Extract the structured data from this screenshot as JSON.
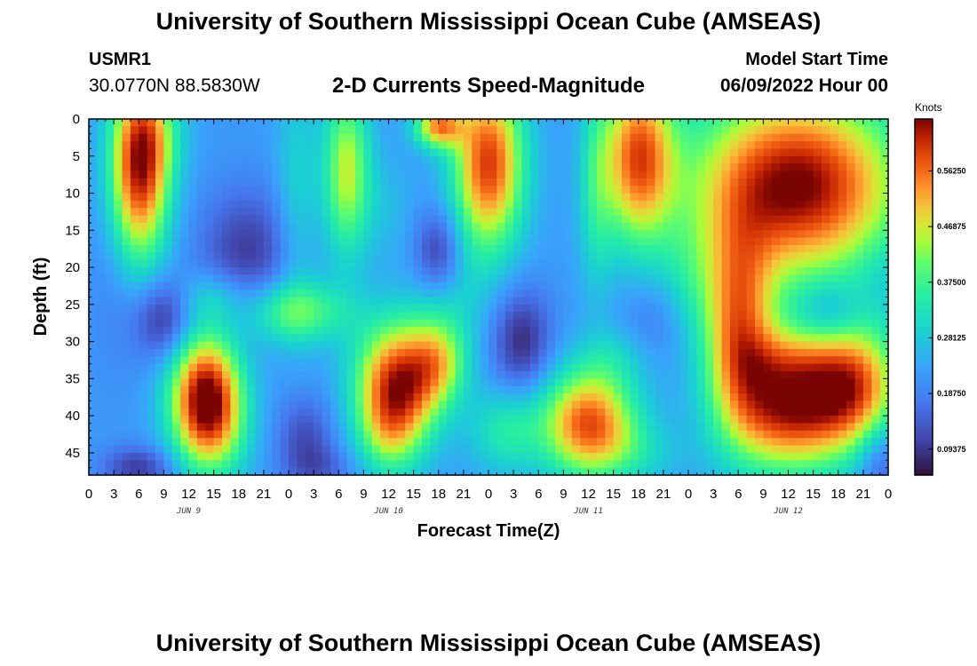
{
  "header": {
    "title": "University of Southern Mississippi Ocean Cube (AMSEAS)",
    "station_id": "USMR1",
    "station_coords": "30.0770N  88.5830W",
    "subtitle": "2-D Currents Speed-Magnitude",
    "start_label": "Model Start Time",
    "start_value": "06/09/2022 Hour 00"
  },
  "footer": {
    "title": "University of Southern Mississippi Ocean Cube (AMSEAS)"
  },
  "chart_data": {
    "type": "heatmap",
    "title": "2-D Currents Speed-Magnitude",
    "xlabel": "Forecast Time(Z)",
    "ylabel": "Depth (ft)",
    "x_unit": "hours since 06/09/2022 00Z",
    "xlim": [
      0,
      96
    ],
    "ylim": [
      0,
      48
    ],
    "y_inverted": true,
    "x_tick_values": [
      0,
      3,
      6,
      9,
      12,
      15,
      18,
      21,
      24,
      27,
      30,
      33,
      36,
      39,
      42,
      45,
      48,
      51,
      54,
      57,
      60,
      63,
      66,
      69,
      72,
      75,
      78,
      81,
      84,
      87,
      90,
      93,
      96
    ],
    "x_tick_labels": [
      "0",
      "3",
      "6",
      "9",
      "12",
      "15",
      "18",
      "21",
      "0",
      "3",
      "6",
      "9",
      "12",
      "15",
      "18",
      "21",
      "0",
      "3",
      "6",
      "9",
      "12",
      "15",
      "18",
      "21",
      "0",
      "3",
      "6",
      "9",
      "12",
      "15",
      "18",
      "21",
      "0"
    ],
    "y_tick_values": [
      0,
      5,
      10,
      15,
      20,
      25,
      30,
      35,
      40,
      45
    ],
    "y_tick_labels": [
      "0",
      "5",
      "10",
      "15",
      "20",
      "25",
      "30",
      "35",
      "40",
      "45"
    ],
    "day_labels": [
      {
        "x": 12,
        "text": "JUN 9"
      },
      {
        "x": 36,
        "text": "JUN 10"
      },
      {
        "x": 60,
        "text": "JUN 11"
      },
      {
        "x": 84,
        "text": "JUN 12"
      }
    ],
    "colorbar": {
      "unit": "Knots",
      "range": [
        0.05,
        0.65
      ],
      "tick_values": [
        0.5625,
        0.46875,
        0.375,
        0.28125,
        0.1875,
        0.09375
      ],
      "tick_labels": [
        "0.56250",
        "0.46875",
        "0.37500",
        "0.28125",
        "0.18750",
        "0.09375"
      ]
    },
    "field": {
      "base": 0.22,
      "features": [
        {
          "t": 6,
          "d": 7,
          "st": 2.5,
          "sd": 9,
          "v": 0.4
        },
        {
          "t": 8,
          "d": 2,
          "st": 2.5,
          "sd": 5,
          "v": 0.1
        },
        {
          "t": 9,
          "d": 27,
          "st": 2.5,
          "sd": 4,
          "v": -0.14
        },
        {
          "t": 3.5,
          "d": 20,
          "st": 2.5,
          "sd": 10,
          "v": -0.04
        },
        {
          "t": 19,
          "d": 18,
          "st": 4,
          "sd": 6,
          "v": -0.12
        },
        {
          "t": 14,
          "d": 37,
          "st": 3,
          "sd": 6,
          "v": 0.4
        },
        {
          "t": 15,
          "d": 42,
          "st": 3,
          "sd": 5,
          "v": 0.12
        },
        {
          "t": 15,
          "d": 24,
          "st": 3,
          "sd": 2.5,
          "v": 0.08
        },
        {
          "t": 25,
          "d": 10,
          "st": 1.8,
          "sd": 12,
          "v": 0.08
        },
        {
          "t": 26,
          "d": 26,
          "st": 4,
          "sd": 3,
          "v": 0.16
        },
        {
          "t": 22,
          "d": 26,
          "st": 2.5,
          "sd": 3,
          "v": 0.05
        },
        {
          "t": 26,
          "d": 43,
          "st": 2.5,
          "sd": 4,
          "v": -0.1
        },
        {
          "t": 31,
          "d": 7,
          "st": 2,
          "sd": 8,
          "v": 0.24
        },
        {
          "t": 37,
          "d": 36,
          "st": 3.5,
          "sd": 6,
          "v": 0.4
        },
        {
          "t": 42,
          "d": 33,
          "st": 2.5,
          "sd": 4,
          "v": 0.18
        },
        {
          "t": 36,
          "d": 43,
          "st": 2.5,
          "sd": 4,
          "v": 0.1
        },
        {
          "t": 36,
          "d": 12,
          "st": 2.2,
          "sd": 5,
          "v": 0.04
        },
        {
          "t": 42,
          "d": 18,
          "st": 2,
          "sd": 4,
          "v": -0.13
        },
        {
          "t": 43,
          "d": 26,
          "st": 3,
          "sd": 5,
          "v": 0.06
        },
        {
          "t": 42,
          "d": 1,
          "st": 2,
          "sd": 2,
          "v": 0.3
        },
        {
          "t": 48,
          "d": 6,
          "st": 3,
          "sd": 8,
          "v": 0.38
        },
        {
          "t": 46,
          "d": 20,
          "st": 3,
          "sd": 5,
          "v": 0.02
        },
        {
          "t": 52,
          "d": 30,
          "st": 2.5,
          "sd": 5,
          "v": -0.14
        },
        {
          "t": 50,
          "d": 42,
          "st": 3,
          "sd": 4,
          "v": 0.12
        },
        {
          "t": 60,
          "d": 41,
          "st": 4,
          "sd": 5,
          "v": 0.36
        },
        {
          "t": 66,
          "d": 45,
          "st": 4,
          "sd": 3,
          "v": 0.06
        },
        {
          "t": 63,
          "d": 32,
          "st": 3,
          "sd": 3,
          "v": 0.06
        },
        {
          "t": 61,
          "d": 10,
          "st": 1.5,
          "sd": 10,
          "v": 0.1
        },
        {
          "t": 66,
          "d": 5,
          "st": 3,
          "sd": 8,
          "v": 0.34
        },
        {
          "t": 68,
          "d": 27,
          "st": 3,
          "sd": 4,
          "v": -0.05
        },
        {
          "t": 72,
          "d": 22,
          "st": 2.5,
          "sd": 6,
          "v": 0.06
        },
        {
          "t": 85,
          "d": 9,
          "st": 9,
          "sd": 9,
          "v": 0.44
        },
        {
          "t": 78,
          "d": 28,
          "st": 3,
          "sd": 9,
          "v": 0.3
        },
        {
          "t": 84,
          "d": 39,
          "st": 5,
          "sd": 6,
          "v": 0.38
        },
        {
          "t": 92,
          "d": 36,
          "st": 4,
          "sd": 6,
          "v": 0.32
        },
        {
          "t": 89,
          "d": 26,
          "st": 2.5,
          "sd": 3,
          "v": -0.08
        },
        {
          "t": 95,
          "d": 20,
          "st": 2,
          "sd": 3,
          "v": -0.02
        },
        {
          "t": 95,
          "d": 46,
          "st": 2,
          "sd": 4,
          "v": -0.1
        },
        {
          "t": 84,
          "d": 32,
          "st": 4,
          "sd": 3,
          "v": 0.08
        },
        {
          "t": 6,
          "d": 47,
          "st": 3,
          "sd": 2,
          "v": -0.12
        },
        {
          "t": 28,
          "d": 47,
          "st": 3,
          "sd": 2,
          "v": -0.06
        }
      ]
    }
  }
}
